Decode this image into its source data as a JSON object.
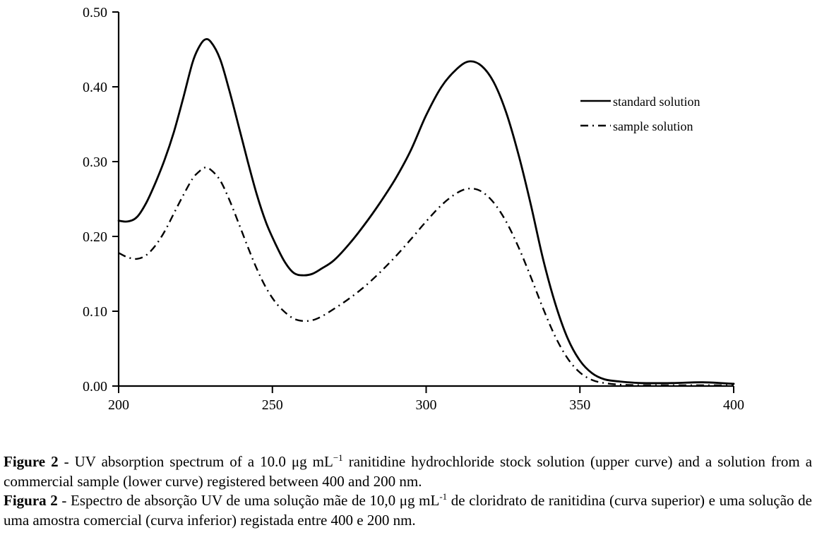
{
  "figure": {
    "background": "#ffffff",
    "ink_color": "#000000"
  },
  "chart_data": {
    "type": "line",
    "title": "",
    "xlabel": "",
    "ylabel": "",
    "xlim": [
      200,
      400
    ],
    "ylim": [
      0,
      0.5
    ],
    "grid": false,
    "legend_position": "inside-right",
    "x_ticks": [
      {
        "value": 200,
        "label": "200"
      },
      {
        "value": 250,
        "label": "250"
      },
      {
        "value": 300,
        "label": "300"
      },
      {
        "value": 350,
        "label": "350"
      },
      {
        "value": 400,
        "label": "400"
      }
    ],
    "y_ticks": [
      {
        "value": 0.0,
        "label": "0.00"
      },
      {
        "value": 0.1,
        "label": "0.10"
      },
      {
        "value": 0.2,
        "label": "0.20"
      },
      {
        "value": 0.3,
        "label": "0.30"
      },
      {
        "value": 0.4,
        "label": "0.40"
      },
      {
        "value": 0.5,
        "label": "0.50"
      }
    ],
    "x": [
      200,
      203,
      206,
      209,
      212,
      215,
      218,
      221,
      224,
      226,
      228,
      230,
      233,
      236,
      239,
      242,
      245,
      248,
      251,
      254,
      257,
      260,
      263,
      266,
      270,
      275,
      280,
      285,
      290,
      295,
      300,
      305,
      310,
      314,
      318,
      322,
      326,
      330,
      334,
      338,
      342,
      346,
      350,
      354,
      358,
      363,
      370,
      380,
      390,
      400
    ],
    "series": [
      {
        "name": "standard solution",
        "slug": "standard-solution",
        "line_style": "solid",
        "color": "#000000",
        "values": [
          0.221,
          0.22,
          0.226,
          0.245,
          0.272,
          0.303,
          0.34,
          0.385,
          0.432,
          0.452,
          0.463,
          0.46,
          0.437,
          0.395,
          0.348,
          0.3,
          0.255,
          0.218,
          0.19,
          0.166,
          0.151,
          0.148,
          0.15,
          0.157,
          0.168,
          0.19,
          0.216,
          0.245,
          0.277,
          0.315,
          0.362,
          0.4,
          0.424,
          0.434,
          0.428,
          0.406,
          0.366,
          0.31,
          0.243,
          0.17,
          0.11,
          0.064,
          0.034,
          0.017,
          0.009,
          0.006,
          0.004,
          0.004,
          0.005,
          0.003
        ]
      },
      {
        "name": "sample solution",
        "slug": "sample-solution",
        "line_style": "dash-dot",
        "color": "#000000",
        "values": [
          0.178,
          0.172,
          0.17,
          0.175,
          0.188,
          0.207,
          0.231,
          0.255,
          0.277,
          0.286,
          0.292,
          0.289,
          0.275,
          0.249,
          0.218,
          0.186,
          0.156,
          0.131,
          0.112,
          0.099,
          0.09,
          0.087,
          0.088,
          0.093,
          0.103,
          0.117,
          0.133,
          0.152,
          0.173,
          0.196,
          0.22,
          0.242,
          0.258,
          0.264,
          0.26,
          0.245,
          0.22,
          0.186,
          0.146,
          0.104,
          0.066,
          0.037,
          0.018,
          0.008,
          0.004,
          0.002,
          0.001,
          0.001,
          0.001,
          0.001
        ]
      }
    ]
  },
  "captions": {
    "en": {
      "bold": "Figure 2",
      "pre_sup": " - UV absorption spectrum of a 10.0 μg mL",
      "sup": "−1",
      "post_sup": " ranitidine hydrochloride stock solution (upper curve) and a solution from a commercial sample (lower curve) registered between 400 and 200 nm."
    },
    "pt": {
      "bold": "Figura 2",
      "pre_sup": " - Espectro de absorção UV de uma solução mãe de 10,0 μg mL",
      "sup": "-1",
      "post_sup": " de cloridrato de ranitidina (curva superior) e uma solução de uma amostra comercial (curva inferior) registada entre 400 e 200 nm."
    }
  }
}
